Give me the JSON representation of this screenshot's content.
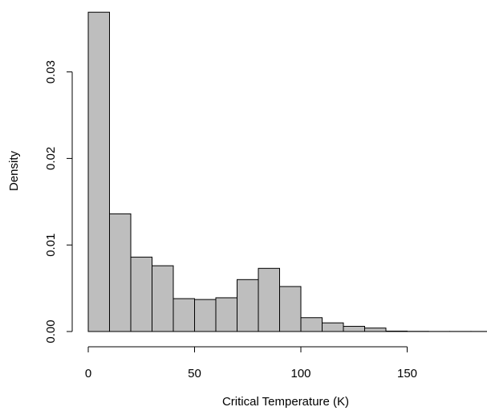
{
  "chart_data": {
    "type": "histogram",
    "title": "",
    "xlabel": "Critical Temperature (K)",
    "ylabel": "Density",
    "bin_edges": [
      0,
      10,
      20,
      30,
      40,
      50,
      60,
      70,
      80,
      90,
      100,
      110,
      120,
      130,
      140,
      150,
      160,
      170,
      180,
      190
    ],
    "values": [
      0.0369,
      0.0136,
      0.0086,
      0.0076,
      0.0038,
      0.0037,
      0.0039,
      0.006,
      0.0073,
      0.0052,
      0.0016,
      0.001,
      0.0006,
      0.0004,
      5e-05,
      2e-05,
      1e-05,
      1e-05,
      1e-05
    ],
    "xlim": [
      0,
      190
    ],
    "ylim": [
      0,
      0.037
    ],
    "x_ticks": [
      0,
      50,
      100,
      150
    ],
    "x_tick_labels": [
      "0",
      "50",
      "100",
      "150"
    ],
    "y_ticks": [
      0,
      0.01,
      0.02,
      0.03
    ],
    "y_tick_labels": [
      "0.00",
      "0.01",
      "0.02",
      "0.03"
    ],
    "bar_fill": "#bebebe",
    "bar_stroke": "#000000",
    "grid": false,
    "legend": "none"
  }
}
